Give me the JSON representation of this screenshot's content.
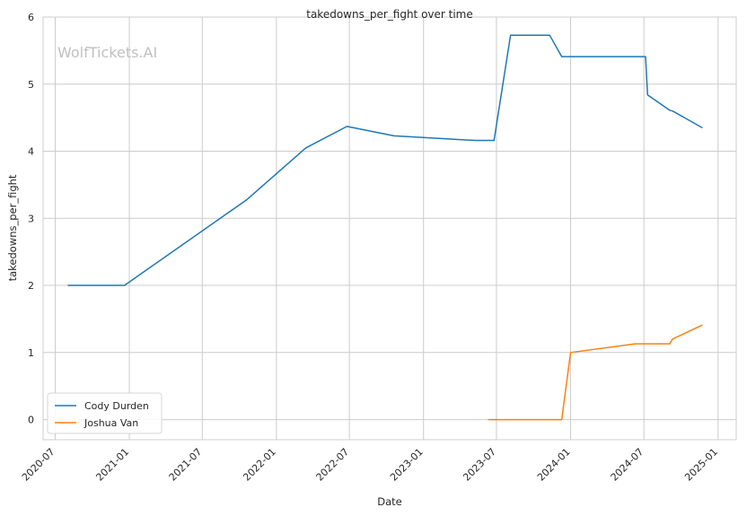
{
  "chart_data": {
    "type": "line",
    "title": "takedowns_per_fight over time",
    "xlabel": "Date",
    "ylabel": "takedowns_per_fight",
    "watermark": "WolfTickets.AI",
    "xlim": [
      "2020-06-01",
      "2025-02-15"
    ],
    "ylim": [
      -0.3,
      6
    ],
    "x_ticks": [
      "2020-07",
      "2021-01",
      "2021-07",
      "2022-01",
      "2022-07",
      "2023-01",
      "2023-07",
      "2024-01",
      "2024-07",
      "2025-01"
    ],
    "y_ticks": [
      0,
      1,
      2,
      3,
      4,
      5,
      6
    ],
    "grid": true,
    "legend_position": "lower-left",
    "series": [
      {
        "name": "Cody Durden",
        "color": "#1f77b4",
        "points": [
          {
            "x": "2020-08-01",
            "y": 2.0
          },
          {
            "x": "2020-12-20",
            "y": 2.0
          },
          {
            "x": "2021-10-20",
            "y": 3.28
          },
          {
            "x": "2022-03-15",
            "y": 4.05
          },
          {
            "x": "2022-06-25",
            "y": 4.37
          },
          {
            "x": "2022-10-20",
            "y": 4.23
          },
          {
            "x": "2023-05-10",
            "y": 4.16
          },
          {
            "x": "2023-06-25",
            "y": 4.16
          },
          {
            "x": "2023-08-05",
            "y": 5.73
          },
          {
            "x": "2023-11-10",
            "y": 5.73
          },
          {
            "x": "2023-12-10",
            "y": 5.41
          },
          {
            "x": "2024-07-05",
            "y": 5.41
          },
          {
            "x": "2024-07-10",
            "y": 4.84
          },
          {
            "x": "2024-09-03",
            "y": 4.61
          },
          {
            "x": "2024-09-10",
            "y": 4.6
          },
          {
            "x": "2024-11-23",
            "y": 4.35
          }
        ]
      },
      {
        "name": "Joshua Van",
        "color": "#ff7f0e",
        "points": [
          {
            "x": "2023-06-10",
            "y": 0.0
          },
          {
            "x": "2023-07-01",
            "y": 0.0
          },
          {
            "x": "2023-12-10",
            "y": 0.0
          },
          {
            "x": "2024-01-01",
            "y": 1.0
          },
          {
            "x": "2024-06-10",
            "y": 1.13
          },
          {
            "x": "2024-09-03",
            "y": 1.13
          },
          {
            "x": "2024-09-10",
            "y": 1.2
          },
          {
            "x": "2024-11-23",
            "y": 1.41
          }
        ]
      }
    ]
  }
}
